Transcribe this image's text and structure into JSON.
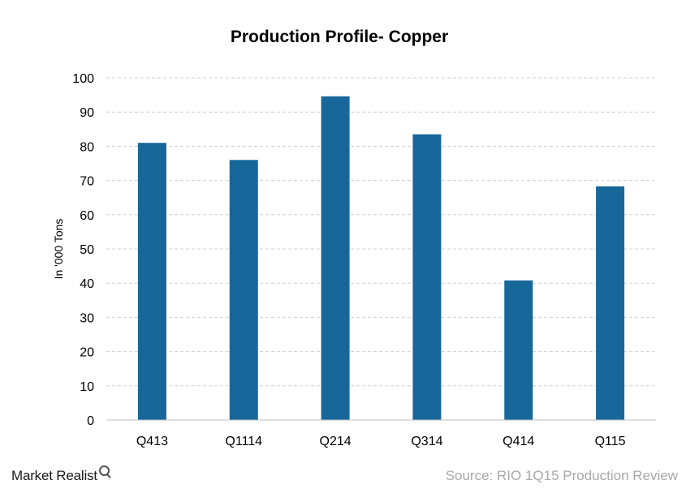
{
  "chart_data": {
    "type": "bar",
    "title": "Production Profile- Copper",
    "ylabel": "In '000 Tons",
    "xlabel": "",
    "categories": [
      "Q413",
      "Q1114",
      "Q214",
      "Q314",
      "Q414",
      "Q115"
    ],
    "values": [
      81,
      76,
      94.6,
      83.5,
      40.8,
      68.3
    ],
    "ylim": [
      0,
      100
    ],
    "yticks": [
      0,
      10,
      20,
      30,
      40,
      50,
      60,
      70,
      80,
      90,
      100
    ],
    "grid": true,
    "bar_color": "#17679a"
  },
  "branding": {
    "logo_text": "Market Realist"
  },
  "source_note": "Source: RIO 1Q15 Production Review"
}
